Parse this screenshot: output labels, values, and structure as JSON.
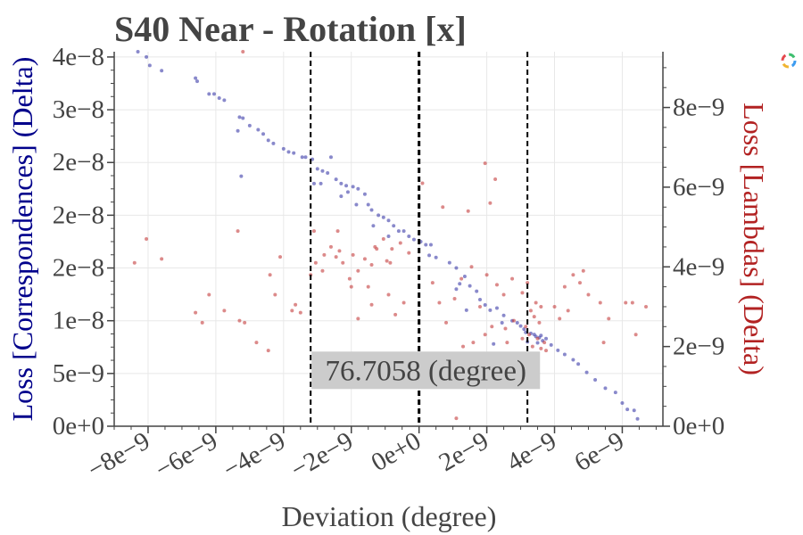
{
  "chart_data": {
    "type": "scatter",
    "title": "S40 Near - Rotation [x]",
    "xlabel": "Deviation (degree)",
    "ylabel_left": "Loss [Correspondences] (Delta)",
    "ylabel_right": "Loss [Lambdas] (Delta)",
    "xlim": [
      -9e-09,
      7.2e-09
    ],
    "ylim_left": [
      0,
      3.55e-08
    ],
    "ylim_right": [
      0,
      9.4e-09
    ],
    "x_ticks": [
      -8e-09,
      -6e-09,
      -4e-09,
      -2e-09,
      0,
      2e-09,
      4e-09,
      6e-09
    ],
    "x_tick_labels": [
      "−8e−9",
      "−6e−9",
      "−4e−9",
      "−2e−9",
      "0e+0",
      "2e−9",
      "4e−9",
      "6e−9"
    ],
    "y_left_ticks": [
      0,
      5e-09,
      1e-08,
      1.5e-08,
      2e-08,
      2.5e-08,
      3e-08,
      3.5e-08
    ],
    "y_left_tick_labels": [
      "0e+0",
      "5e−9",
      "1e−8",
      "2e−8",
      "2e−8",
      "2e−8",
      "3e−8",
      "4e−8"
    ],
    "y_right_ticks": [
      0,
      2e-09,
      4e-09,
      6e-09,
      8e-09
    ],
    "y_right_tick_labels": [
      "0e+0",
      "2e−9",
      "4e−9",
      "6e−9",
      "8e−9"
    ],
    "grid": true,
    "vlines": [
      {
        "x": -3.2e-09,
        "style": "dashed"
      },
      {
        "x": 0,
        "style": "dashed-thick"
      },
      {
        "x": 3.2e-09,
        "style": "dashed"
      }
    ],
    "annotation": {
      "text": "76.7058 (degree)",
      "x": 2e-10,
      "y": 5.3e-09
    },
    "series": [
      {
        "color": "#3b3ba8",
        "axis": "left",
        "points": [
          [
            -8.3e-09,
            3.55e-08
          ],
          [
            -8.05e-09,
            3.5e-08
          ],
          [
            -7.95e-09,
            3.42e-08
          ],
          [
            -7.6e-09,
            3.37e-08
          ],
          [
            -6.6e-09,
            3.3e-08
          ],
          [
            -6.55e-09,
            3.27e-08
          ],
          [
            -6.2e-09,
            3.15e-08
          ],
          [
            -6.05e-09,
            3.15e-08
          ],
          [
            -5.9e-09,
            3.11e-08
          ],
          [
            -5.75e-09,
            3.09e-08
          ],
          [
            -5.3e-09,
            2.93e-08
          ],
          [
            -5.2e-09,
            2.92e-08
          ],
          [
            -5e-09,
            2.85e-08
          ],
          [
            -4.75e-09,
            2.81e-08
          ],
          [
            -5.35e-09,
            2.8e-08
          ],
          [
            -4.6e-09,
            2.77e-08
          ],
          [
            -4.45e-09,
            2.71e-08
          ],
          [
            -4.3e-09,
            2.68e-08
          ],
          [
            -4e-09,
            2.63e-08
          ],
          [
            -3.85e-09,
            2.6e-08
          ],
          [
            -3.7e-09,
            2.59e-08
          ],
          [
            -3.45e-09,
            2.55e-08
          ],
          [
            -3.35e-09,
            2.55e-08
          ],
          [
            -3.15e-09,
            2.53e-08
          ],
          [
            -5.25e-09,
            2.37e-08
          ],
          [
            -3e-09,
            2.44e-08
          ],
          [
            -2.85e-09,
            2.42e-08
          ],
          [
            -2.7e-09,
            2.4e-08
          ],
          [
            -2.6e-09,
            2.55e-08
          ],
          [
            -3.1e-09,
            2.3e-08
          ],
          [
            -2.9e-09,
            2.3e-08
          ],
          [
            -2.45e-09,
            2.34e-08
          ],
          [
            -2.3e-09,
            2.3e-08
          ],
          [
            -2.15e-09,
            2.28e-08
          ],
          [
            -1.95e-09,
            2.27e-08
          ],
          [
            -2.1e-09,
            2.22e-08
          ],
          [
            -1.8e-09,
            2.25e-08
          ],
          [
            -1.6e-09,
            2.2e-08
          ],
          [
            -2.3e-09,
            2.18e-08
          ],
          [
            -1.85e-09,
            2.1e-08
          ],
          [
            -1.5e-09,
            2.1e-08
          ],
          [
            -1.4e-09,
            2.05e-08
          ],
          [
            -1.2e-09,
            2e-08
          ],
          [
            -1.05e-09,
            1.98e-08
          ],
          [
            -9e-10,
            1.95e-08
          ],
          [
            -1.35e-09,
            1.9e-08
          ],
          [
            -7.5e-10,
            1.9e-08
          ],
          [
            -6e-10,
            1.85e-08
          ],
          [
            -4.5e-10,
            1.85e-08
          ],
          [
            -9e-10,
            1.8e-08
          ],
          [
            -3e-10,
            1.8e-08
          ],
          [
            -1.5e-10,
            1.77e-08
          ],
          [
            5e-11,
            1.75e-08
          ],
          [
            2e-10,
            1.72e-08
          ],
          [
            3.5e-10,
            1.72e-08
          ],
          [
            5e-10,
            1.6e-08
          ],
          [
            3e-10,
            1.62e-08
          ],
          [
            9e-10,
            1.55e-08
          ],
          [
            1.1e-09,
            1.5e-08
          ],
          [
            1.35e-09,
            1.42e-08
          ],
          [
            1.2e-09,
            1.35e-08
          ],
          [
            1.5e-09,
            1.33e-08
          ],
          [
            1.1e-09,
            1.3e-08
          ],
          [
            1.7e-09,
            1.28e-08
          ],
          [
            1.8e-09,
            1.2e-08
          ],
          [
            1.95e-09,
            1.15e-08
          ],
          [
            2.1e-09,
            1.1e-08
          ],
          [
            2.3e-09,
            1.12e-08
          ],
          [
            1.4e-09,
            1.1e-08
          ],
          [
            2.5e-09,
            1.05e-08
          ],
          [
            2.75e-09,
            1e-08
          ],
          [
            2.9e-09,
            9.8e-09
          ],
          [
            2.45e-09,
            9.8e-09
          ],
          [
            3e-09,
            9.5e-09
          ],
          [
            3.1e-09,
            9.2e-09
          ],
          [
            3.15e-09,
            8.9e-09
          ],
          [
            3.3e-09,
            8.8e-09
          ],
          [
            3.4e-09,
            8.7e-09
          ],
          [
            3.45e-09,
            8.5e-09
          ],
          [
            3.55e-09,
            8.4e-09
          ],
          [
            3.6e-09,
            8.6e-09
          ],
          [
            3.65e-09,
            8.1e-09
          ],
          [
            3.75e-09,
            8.3e-09
          ],
          [
            3.5e-09,
            7.9e-09
          ],
          [
            3.2e-09,
            8e-09
          ],
          [
            3.9e-09,
            7.7e-09
          ],
          [
            2.2e-09,
            7.8e-09
          ],
          [
            4.1e-09,
            7.2e-09
          ],
          [
            4.3e-09,
            6.8e-09
          ],
          [
            4.55e-09,
            6.3e-09
          ],
          [
            4.7e-09,
            5.9e-09
          ],
          [
            4.95e-09,
            5.1e-09
          ],
          [
            5.2e-09,
            4.4e-09
          ],
          [
            5.5e-09,
            3.6e-09
          ],
          [
            5.8e-09,
            3.2e-09
          ],
          [
            6e-09,
            2.2e-09
          ],
          [
            6.15e-09,
            1.6e-09
          ],
          [
            6.35e-09,
            1.5e-09
          ],
          [
            6.45e-09,
            7e-10
          ]
        ]
      },
      {
        "color": "#c43c3c",
        "axis": "right",
        "points": [
          [
            -5.2e-09,
            9.4e-09
          ],
          [
            1.95e-09,
            6.6e-09
          ],
          [
            2.25e-09,
            6.2e-09
          ],
          [
            2.1e-09,
            5.6e-09
          ],
          [
            1e-10,
            6.1e-09
          ],
          [
            7e-10,
            5.5e-09
          ],
          [
            1.45e-09,
            5.4e-09
          ],
          [
            -3.1e-09,
            4.9e-09
          ],
          [
            -5.35e-09,
            4.9e-09
          ],
          [
            -8.05e-09,
            4.7e-09
          ],
          [
            -8.4e-09,
            4.1e-09
          ],
          [
            -7.6e-09,
            4.2e-09
          ],
          [
            -4.1e-09,
            4.25e-09
          ],
          [
            -3.05e-09,
            4.1e-09
          ],
          [
            -3.2e-09,
            3.8e-09
          ],
          [
            -2.8e-09,
            4.3e-09
          ],
          [
            -2.6e-09,
            4.5e-09
          ],
          [
            -2.35e-09,
            4.4e-09
          ],
          [
            -2.25e-09,
            4.1e-09
          ],
          [
            -1.95e-09,
            4.3e-09
          ],
          [
            -1.8e-09,
            3.9e-09
          ],
          [
            -1.6e-09,
            4.2e-09
          ],
          [
            -1.4e-09,
            4.05e-09
          ],
          [
            -1.25e-09,
            4.45e-09
          ],
          [
            -1.05e-09,
            4.7e-09
          ],
          [
            -8e-10,
            4.45e-09
          ],
          [
            -5.5e-10,
            4.6e-09
          ],
          [
            -3e-10,
            4.35e-09
          ],
          [
            -8.5e-10,
            4.1e-09
          ],
          [
            -2.05e-09,
            3.7e-09
          ],
          [
            -4.4e-09,
            3.8e-09
          ],
          [
            -4.25e-09,
            3.3e-09
          ],
          [
            -2e-09,
            3.5e-09
          ],
          [
            -1.5e-09,
            3.5e-09
          ],
          [
            4e-10,
            3.6e-09
          ],
          [
            6e-10,
            3.1e-09
          ],
          [
            1.05e-09,
            3.2e-09
          ],
          [
            1.25e-09,
            3.7e-09
          ],
          [
            1.55e-09,
            4e-09
          ],
          [
            2e-09,
            3.8e-09
          ],
          [
            2.3e-09,
            3.55e-09
          ],
          [
            2.5e-09,
            3.3e-09
          ],
          [
            2.75e-09,
            3.7e-09
          ],
          [
            3.05e-09,
            3.35e-09
          ],
          [
            3.2e-09,
            3.6e-09
          ],
          [
            3.45e-09,
            3.1e-09
          ],
          [
            3.6e-09,
            3e-09
          ],
          [
            3.3e-09,
            2.9e-09
          ],
          [
            3.4e-09,
            2.75e-09
          ],
          [
            3.55e-09,
            2.6e-09
          ],
          [
            3.15e-09,
            2.5e-09
          ],
          [
            3.25e-09,
            2.3e-09
          ],
          [
            3.5e-09,
            2.2e-09
          ],
          [
            3.7e-09,
            2.1e-09
          ],
          [
            3.35e-09,
            2e-09
          ],
          [
            3.6e-09,
            1.95e-09
          ],
          [
            3.75e-09,
            1.9e-09
          ],
          [
            3.05e-09,
            2.2e-09
          ],
          [
            2.8e-09,
            2.65e-09
          ],
          [
            2.55e-09,
            2.45e-09
          ],
          [
            2.15e-09,
            2.5e-09
          ],
          [
            1.95e-09,
            2.3e-09
          ],
          [
            1.6e-09,
            2.1e-09
          ],
          [
            1.3e-09,
            2e-09
          ],
          [
            4e-09,
            3e-09
          ],
          [
            4.15e-09,
            2.7e-09
          ],
          [
            4.3e-09,
            3.5e-09
          ],
          [
            4.55e-09,
            3.8e-09
          ],
          [
            4.75e-09,
            3.6e-09
          ],
          [
            4.85e-09,
            3.9e-09
          ],
          [
            5e-09,
            3.3e-09
          ],
          [
            4.4e-09,
            2.9e-09
          ],
          [
            5.35e-09,
            3.1e-09
          ],
          [
            5.6e-09,
            2.7e-09
          ],
          [
            6.1e-09,
            3.1e-09
          ],
          [
            6.3e-09,
            3.1e-09
          ],
          [
            6.7e-09,
            3e-09
          ],
          [
            6.4e-09,
            2.3e-09
          ],
          [
            5.45e-09,
            2.1e-09
          ],
          [
            1.1e-09,
            2e-10
          ],
          [
            -6.6e-09,
            2.85e-09
          ],
          [
            -6.4e-09,
            2.6e-09
          ],
          [
            -6.2e-09,
            3.3e-09
          ],
          [
            -5.75e-09,
            2.9e-09
          ],
          [
            -5.3e-09,
            2.65e-09
          ],
          [
            -5.15e-09,
            2.6e-09
          ],
          [
            -4.8e-09,
            2.1e-09
          ],
          [
            -4.45e-09,
            1.9e-09
          ],
          [
            -3.75e-09,
            2.9e-09
          ],
          [
            -3.65e-09,
            3.05e-09
          ],
          [
            -3.5e-09,
            2.85e-09
          ],
          [
            -1.8e-09,
            2.7e-09
          ],
          [
            -1.4e-09,
            3.05e-09
          ],
          [
            -9e-10,
            3.3e-09
          ],
          [
            -7e-10,
            2.8e-09
          ],
          [
            -4.5e-10,
            3.1e-09
          ],
          [
            8e-10,
            2.6e-09
          ],
          [
            1.8e-09,
            3e-09
          ],
          [
            2.6e-09,
            2.1e-09
          ],
          [
            -2.4e-09,
            4.9e-09
          ],
          [
            -1.3e-09,
            4.5e-09
          ],
          [
            -2.85e-09,
            3.9e-09
          ],
          [
            -2.45e-09,
            4.25e-09
          ],
          [
            -9.5e-10,
            4.15e-09
          ]
        ]
      }
    ]
  },
  "toolbar": {
    "logo_icon": "plotly-logo-icon"
  }
}
